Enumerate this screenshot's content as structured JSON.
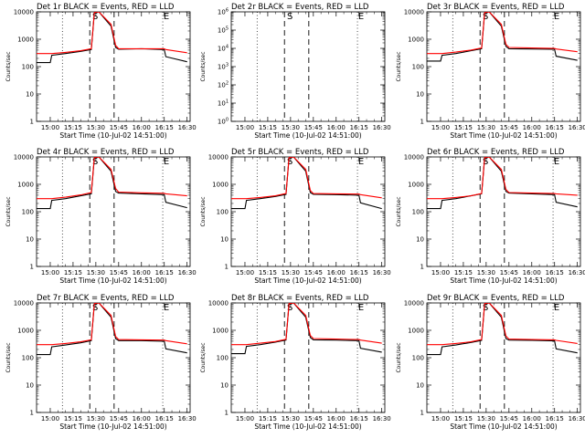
{
  "figure": {
    "x_ticks": [
      "15:00",
      "15:15",
      "15:30",
      "15:45",
      "16:00",
      "16:15",
      "16:30"
    ],
    "xlabel": "Start Time (10-Jul-02 14:51:00)",
    "ylabel": "Counts/sec",
    "y_ticks_log": [
      "1",
      "10",
      "100",
      "1000",
      "10000"
    ],
    "colors": {
      "events": "#000000",
      "lld": "#ff0000",
      "background": "#ffffff"
    },
    "line_labels": {
      "start": "S",
      "end": "E"
    }
  },
  "chart_data": [
    {
      "type": "line",
      "title": "Det 1r BLACK = Events, RED = LLD",
      "ylabel": "Counts/sec",
      "xlabel": "Start Time (10-Jul-02 14:51:00)",
      "y_scale": "log",
      "ylim": [
        1,
        10000
      ],
      "x_time": [
        "14:51",
        "15:00",
        "15:01",
        "15:10",
        "15:20",
        "15:27",
        "15:29",
        "15:32",
        "15:40",
        "15:43",
        "15:45",
        "16:00",
        "16:15",
        "16:16",
        "16:30"
      ],
      "series": [
        {
          "name": "Events",
          "color": "#000000",
          "values": [
            140,
            140,
            260,
            300,
            360,
            420,
            9000,
            10000,
            3000,
            500,
            430,
            450,
            420,
            230,
            150
          ]
        },
        {
          "name": "LLD",
          "color": "#ff0000",
          "values": [
            300,
            300,
            300,
            330,
            380,
            450,
            9500,
            10000,
            3500,
            600,
            450,
            450,
            450,
            420,
            320
          ]
        }
      ],
      "vertical_lines": [
        "15:08",
        "15:26",
        "15:42",
        "16:14"
      ]
    },
    {
      "type": "line",
      "title": "Det 2r BLACK = Events, RED = LLD",
      "ylabel": "Counts/sec",
      "xlabel": "Start Time (10-Jul-02 14:51:00)",
      "y_scale": "log",
      "ylim": [
        1,
        1000000
      ],
      "y_ticks": [
        "10^0",
        "10^1",
        "10^2",
        "10^3",
        "10^4",
        "10^5",
        "10^6"
      ],
      "x_time": [],
      "series": [],
      "vertical_lines": [
        "15:08",
        "15:26",
        "15:42",
        "16:14"
      ]
    },
    {
      "type": "line",
      "title": "Det 3r BLACK = Events, RED = LLD",
      "ylabel": "Counts/sec",
      "xlabel": "Start Time (10-Jul-02 14:51:00)",
      "y_scale": "log",
      "ylim": [
        1,
        10000
      ],
      "x_time": [
        "14:51",
        "15:00",
        "15:01",
        "15:10",
        "15:20",
        "15:27",
        "15:29",
        "15:32",
        "15:40",
        "15:43",
        "15:45",
        "16:00",
        "16:15",
        "16:16",
        "16:30"
      ],
      "series": [
        {
          "name": "Events",
          "color": "#000000",
          "values": [
            160,
            160,
            260,
            300,
            380,
            450,
            9000,
            10000,
            3000,
            550,
            450,
            440,
            430,
            240,
            170
          ]
        },
        {
          "name": "LLD",
          "color": "#ff0000",
          "values": [
            300,
            300,
            300,
            340,
            400,
            480,
            9500,
            10000,
            3500,
            650,
            500,
            480,
            460,
            440,
            350
          ]
        }
      ],
      "vertical_lines": [
        "15:08",
        "15:26",
        "15:42",
        "16:14"
      ]
    },
    {
      "type": "line",
      "title": "Det 4r BLACK = Events, RED = LLD",
      "ylabel": "Counts/sec",
      "xlabel": "Start Time (10-Jul-02 14:51:00)",
      "y_scale": "log",
      "ylim": [
        1,
        10000
      ],
      "x_time": [
        "14:51",
        "15:00",
        "15:01",
        "15:10",
        "15:20",
        "15:27",
        "15:29",
        "15:32",
        "15:40",
        "15:43",
        "15:45",
        "16:00",
        "16:15",
        "16:16",
        "16:30"
      ],
      "series": [
        {
          "name": "Events",
          "color": "#000000",
          "values": [
            130,
            130,
            260,
            300,
            380,
            450,
            9000,
            10000,
            3000,
            550,
            480,
            450,
            420,
            220,
            140
          ]
        },
        {
          "name": "LLD",
          "color": "#ff0000",
          "values": [
            300,
            300,
            300,
            340,
            410,
            500,
            9500,
            10000,
            3500,
            700,
            520,
            490,
            470,
            450,
            380
          ]
        }
      ],
      "vertical_lines": [
        "15:08",
        "15:26",
        "15:42",
        "16:14"
      ]
    },
    {
      "type": "line",
      "title": "Det 5r BLACK = Events, RED = LLD",
      "ylabel": "Counts/sec",
      "xlabel": "Start Time (10-Jul-02 14:51:00)",
      "y_scale": "log",
      "ylim": [
        1,
        10000
      ],
      "x_time": [
        "14:51",
        "15:00",
        "15:01",
        "15:10",
        "15:20",
        "15:27",
        "15:29",
        "15:32",
        "15:40",
        "15:43",
        "15:45",
        "16:00",
        "16:15",
        "16:16",
        "16:30"
      ],
      "series": [
        {
          "name": "Events",
          "color": "#000000",
          "values": [
            130,
            130,
            260,
            300,
            360,
            430,
            9000,
            10000,
            3000,
            500,
            430,
            420,
            400,
            210,
            130
          ]
        },
        {
          "name": "LLD",
          "color": "#ff0000",
          "values": [
            300,
            300,
            300,
            330,
            380,
            460,
            9500,
            10000,
            3500,
            600,
            460,
            450,
            440,
            420,
            320
          ]
        }
      ],
      "vertical_lines": [
        "15:08",
        "15:26",
        "15:42",
        "16:14"
      ]
    },
    {
      "type": "line",
      "title": "Det 6r BLACK = Events, RED = LLD",
      "ylabel": "Counts/sec",
      "xlabel": "Start Time (10-Jul-02 14:51:00)",
      "y_scale": "log",
      "ylim": [
        1,
        10000
      ],
      "x_time": [
        "14:51",
        "15:00",
        "15:01",
        "15:10",
        "15:20",
        "15:27",
        "15:29",
        "15:32",
        "15:40",
        "15:43",
        "15:45",
        "16:00",
        "16:15",
        "16:16",
        "16:30"
      ],
      "series": [
        {
          "name": "Events",
          "color": "#000000",
          "values": [
            130,
            130,
            260,
            300,
            380,
            450,
            9000,
            10000,
            3000,
            550,
            480,
            450,
            420,
            220,
            150
          ]
        },
        {
          "name": "LLD",
          "color": "#ff0000",
          "values": [
            300,
            300,
            300,
            330,
            380,
            460,
            9500,
            10000,
            3500,
            650,
            500,
            480,
            460,
            450,
            400
          ]
        }
      ],
      "vertical_lines": [
        "15:08",
        "15:26",
        "15:42",
        "16:14"
      ]
    },
    {
      "type": "line",
      "title": "Det 7r BLACK = Events, RED = LLD",
      "ylabel": "Counts/sec",
      "xlabel": "Start Time (10-Jul-02 14:51:00)",
      "y_scale": "log",
      "ylim": [
        1,
        10000
      ],
      "x_time": [
        "14:51",
        "15:00",
        "15:01",
        "15:10",
        "15:20",
        "15:27",
        "15:29",
        "15:32",
        "15:40",
        "15:43",
        "15:45",
        "16:00",
        "16:15",
        "16:16",
        "16:30"
      ],
      "series": [
        {
          "name": "Events",
          "color": "#000000",
          "values": [
            130,
            130,
            250,
            290,
            350,
            420,
            9000,
            10000,
            3000,
            500,
            420,
            420,
            400,
            210,
            150
          ]
        },
        {
          "name": "LLD",
          "color": "#ff0000",
          "values": [
            300,
            300,
            300,
            330,
            380,
            450,
            9500,
            10000,
            3500,
            600,
            460,
            450,
            440,
            420,
            320
          ]
        }
      ],
      "vertical_lines": [
        "15:08",
        "15:26",
        "15:42",
        "16:14"
      ]
    },
    {
      "type": "line",
      "title": "Det 8r BLACK = Events, RED = LLD",
      "ylabel": "Counts/sec",
      "xlabel": "Start Time (10-Jul-02 14:51:00)",
      "y_scale": "log",
      "ylim": [
        1,
        10000
      ],
      "x_time": [
        "14:51",
        "15:00",
        "15:01",
        "15:10",
        "15:20",
        "15:27",
        "15:29",
        "15:32",
        "15:40",
        "15:43",
        "15:45",
        "16:00",
        "16:15",
        "16:16",
        "16:30"
      ],
      "series": [
        {
          "name": "Events",
          "color": "#000000",
          "values": [
            140,
            140,
            260,
            300,
            370,
            440,
            9000,
            10000,
            3000,
            550,
            450,
            440,
            420,
            220,
            160
          ]
        },
        {
          "name": "LLD",
          "color": "#ff0000",
          "values": [
            300,
            300,
            300,
            340,
            390,
            470,
            9500,
            10000,
            3500,
            650,
            500,
            480,
            460,
            440,
            340
          ]
        }
      ],
      "vertical_lines": [
        "15:08",
        "15:26",
        "15:42",
        "16:14"
      ]
    },
    {
      "type": "line",
      "title": "Det 9r BLACK = Events, RED = LLD",
      "ylabel": "Counts/sec",
      "xlabel": "Start Time (10-Jul-02 14:51:00)",
      "y_scale": "log",
      "ylim": [
        1,
        10000
      ],
      "x_time": [
        "14:51",
        "15:00",
        "15:01",
        "15:10",
        "15:20",
        "15:27",
        "15:29",
        "15:32",
        "15:40",
        "15:43",
        "15:45",
        "16:00",
        "16:15",
        "16:16",
        "16:30"
      ],
      "series": [
        {
          "name": "Events",
          "color": "#000000",
          "values": [
            130,
            130,
            250,
            290,
            360,
            430,
            9000,
            10000,
            3000,
            500,
            440,
            430,
            410,
            210,
            150
          ]
        },
        {
          "name": "LLD",
          "color": "#ff0000",
          "values": [
            300,
            300,
            300,
            330,
            380,
            460,
            9500,
            10000,
            3500,
            620,
            480,
            460,
            450,
            430,
            330
          ]
        }
      ],
      "vertical_lines": [
        "15:08",
        "15:26",
        "15:42",
        "16:14"
      ]
    }
  ]
}
